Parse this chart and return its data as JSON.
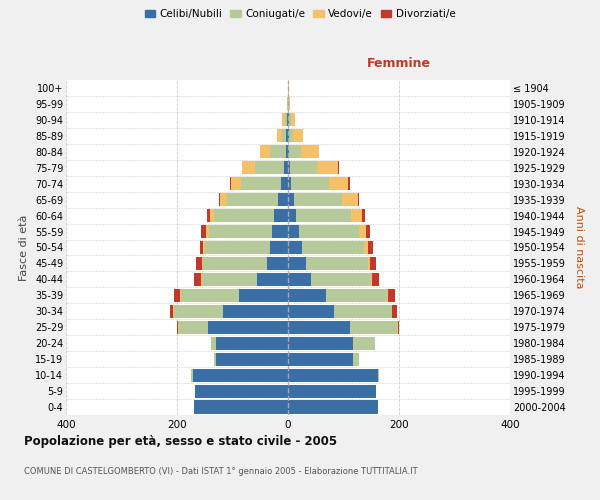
{
  "age_groups": [
    "0-4",
    "5-9",
    "10-14",
    "15-19",
    "20-24",
    "25-29",
    "30-34",
    "35-39",
    "40-44",
    "45-49",
    "50-54",
    "55-59",
    "60-64",
    "65-69",
    "70-74",
    "75-79",
    "80-84",
    "85-89",
    "90-94",
    "95-99",
    "100+"
  ],
  "birth_years": [
    "2000-2004",
    "1995-1999",
    "1990-1994",
    "1985-1989",
    "1980-1984",
    "1975-1979",
    "1970-1974",
    "1965-1969",
    "1960-1964",
    "1955-1959",
    "1950-1954",
    "1945-1949",
    "1940-1944",
    "1935-1939",
    "1930-1934",
    "1925-1929",
    "1920-1924",
    "1915-1919",
    "1910-1914",
    "1905-1909",
    "≤ 1904"
  ],
  "males": {
    "celibe": [
      170,
      168,
      172,
      130,
      130,
      145,
      118,
      88,
      55,
      38,
      32,
      28,
      25,
      18,
      12,
      8,
      4,
      3,
      2,
      0,
      0
    ],
    "coniugato": [
      0,
      0,
      2,
      3,
      8,
      52,
      88,
      105,
      100,
      115,
      118,
      115,
      108,
      92,
      72,
      52,
      28,
      8,
      4,
      1,
      0
    ],
    "vedovo": [
      0,
      0,
      0,
      0,
      0,
      1,
      1,
      1,
      2,
      2,
      3,
      5,
      8,
      12,
      18,
      22,
      18,
      8,
      4,
      1,
      0
    ],
    "divorziato": [
      0,
      0,
      0,
      0,
      1,
      2,
      5,
      12,
      12,
      10,
      5,
      8,
      5,
      3,
      2,
      1,
      1,
      0,
      0,
      0,
      0
    ]
  },
  "females": {
    "nubile": [
      162,
      158,
      162,
      118,
      118,
      112,
      82,
      68,
      42,
      32,
      25,
      20,
      15,
      10,
      6,
      4,
      2,
      1,
      1,
      0,
      0
    ],
    "coniugata": [
      0,
      0,
      2,
      10,
      38,
      85,
      105,
      110,
      108,
      112,
      112,
      108,
      98,
      88,
      68,
      48,
      22,
      8,
      4,
      1,
      0
    ],
    "vedova": [
      0,
      0,
      0,
      0,
      0,
      1,
      1,
      2,
      2,
      4,
      8,
      12,
      20,
      28,
      35,
      38,
      32,
      18,
      8,
      3,
      1
    ],
    "divorziata": [
      0,
      0,
      0,
      0,
      1,
      2,
      8,
      12,
      12,
      10,
      8,
      8,
      5,
      2,
      2,
      1,
      0,
      0,
      0,
      0,
      0
    ]
  },
  "colors": {
    "celibe": "#3a6ea5",
    "coniugato": "#b5c99a",
    "vedovo": "#f4c16a",
    "divorziato": "#c0392b"
  },
  "legend_labels": [
    "Celibi/Nubili",
    "Coniugati/e",
    "Vedovi/e",
    "Divorziati/e"
  ],
  "title": "Popolazione per età, sesso e stato civile - 2005",
  "subtitle": "COMUNE DI CASTELGOMBERTO (VI) - Dati ISTAT 1° gennaio 2005 - Elaborazione TUTTITALIA.IT",
  "femmine_label": "Femmine",
  "ylabel_left": "Fasce di età",
  "ylabel_right": "Anni di nascita",
  "xlim": 400,
  "bg_color": "#f0f0f0",
  "plot_bg": "#ffffff"
}
